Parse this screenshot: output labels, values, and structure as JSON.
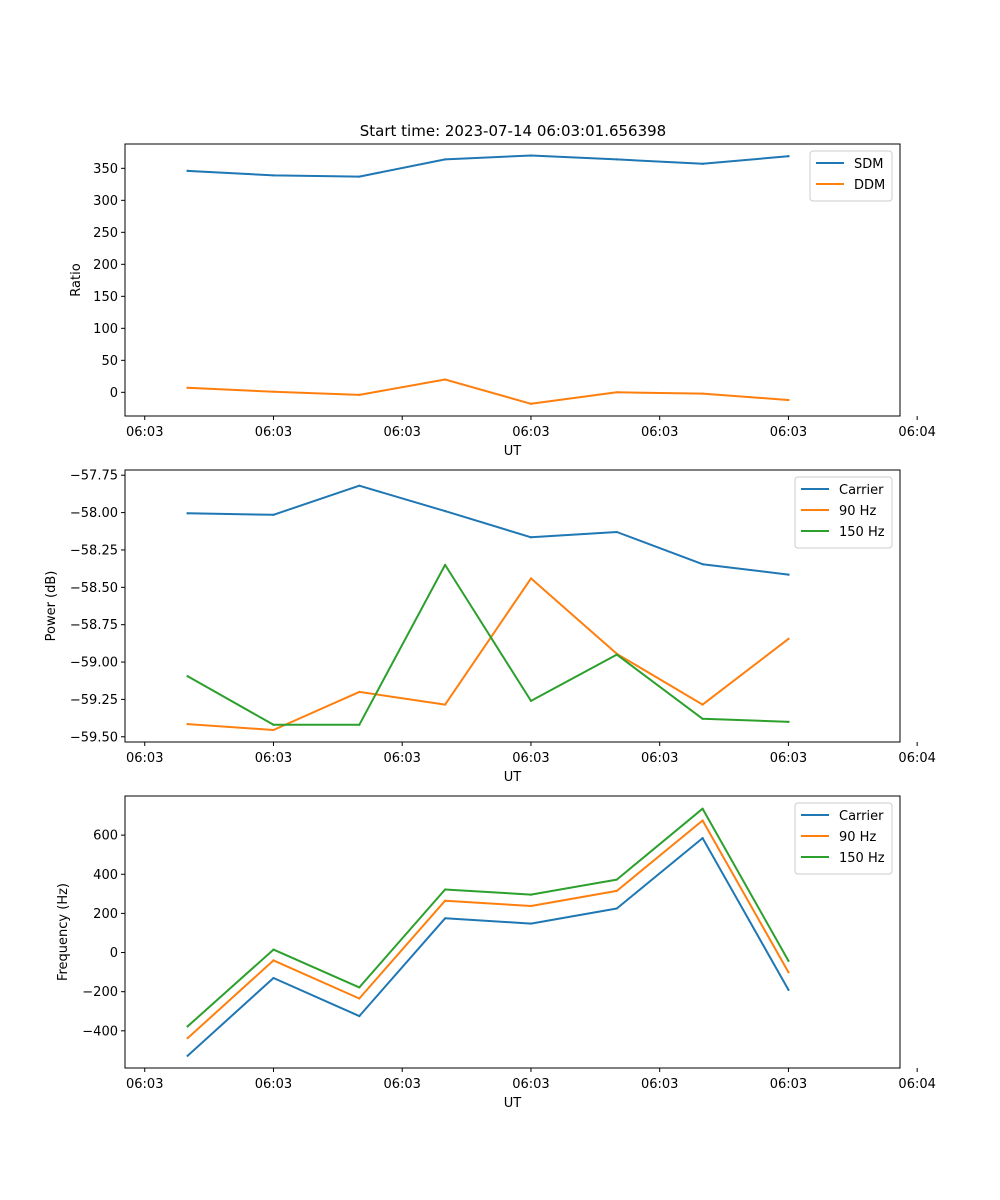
{
  "figure_title": "Start time: 2023-07-14 06:03:01.656398",
  "chart_data": [
    {
      "type": "line",
      "title": "Start time: 2023-07-14 06:03:01.656398",
      "xlabel": "UT",
      "ylabel": "Ratio",
      "x": [
        1,
        2,
        3,
        4,
        5,
        6,
        7,
        8
      ],
      "xlim": [
        0.27,
        9.3
      ],
      "xticks": [
        0.5,
        2,
        3.5,
        5,
        6.5,
        8,
        9.5
      ],
      "xtick_labels": [
        "06:03",
        "06:03",
        "06:03",
        "06:03",
        "06:03",
        "06:03",
        "06:04"
      ],
      "ylim": [
        -37,
        388
      ],
      "yticks": [
        0,
        50,
        100,
        150,
        200,
        250,
        300,
        350
      ],
      "ytick_labels": [
        "0",
        "50",
        "100",
        "150",
        "200",
        "250",
        "300",
        "350"
      ],
      "legend_position": "top-right",
      "series": [
        {
          "name": "SDM",
          "color": "#1f77b4",
          "values": [
            346,
            339,
            337,
            364,
            370,
            364,
            357,
            369
          ]
        },
        {
          "name": "DDM",
          "color": "#ff7f0e",
          "values": [
            7,
            1,
            -4,
            20,
            -18,
            0,
            -2,
            -12
          ]
        }
      ]
    },
    {
      "type": "line",
      "title": "",
      "xlabel": "UT",
      "ylabel": "Power (dB)",
      "x": [
        1,
        2,
        3,
        4,
        5,
        6,
        7,
        8
      ],
      "xlim": [
        0.27,
        9.3
      ],
      "xticks": [
        0.5,
        2,
        3.5,
        5,
        6.5,
        8,
        9.5
      ],
      "xtick_labels": [
        "06:03",
        "06:03",
        "06:03",
        "06:03",
        "06:03",
        "06:03",
        "06:04"
      ],
      "ylim": [
        -59.535,
        -57.715
      ],
      "yticks": [
        -59.5,
        -59.25,
        -59.0,
        -58.75,
        -58.5,
        -58.25,
        -58.0,
        -57.75
      ],
      "ytick_labels": [
        "−59.50",
        "−59.25",
        "−59.00",
        "−58.75",
        "−58.50",
        "−58.25",
        "−58.00",
        "−57.75"
      ],
      "legend_position": "top-right",
      "series": [
        {
          "name": "Carrier",
          "color": "#1f77b4",
          "values": [
            -58.005,
            -58.015,
            -57.82,
            -57.99,
            -58.165,
            -58.13,
            -58.345,
            -58.415
          ]
        },
        {
          "name": "90 Hz",
          "color": "#ff7f0e",
          "values": [
            -59.415,
            -59.455,
            -59.2,
            -59.285,
            -58.44,
            -58.945,
            -59.285,
            -58.845
          ]
        },
        {
          "name": "150 Hz",
          "color": "#2ca02c",
          "values": [
            -59.095,
            -59.42,
            -59.42,
            -58.35,
            -59.26,
            -58.95,
            -59.38,
            -59.4
          ]
        }
      ]
    },
    {
      "type": "line",
      "title": "",
      "xlabel": "UT",
      "ylabel": "Frequency (Hz)",
      "x": [
        1,
        2,
        3,
        4,
        5,
        6,
        7,
        8
      ],
      "xlim": [
        0.27,
        9.3
      ],
      "xticks": [
        0.5,
        2,
        3.5,
        5,
        6.5,
        8,
        9.5
      ],
      "xtick_labels": [
        "06:03",
        "06:03",
        "06:03",
        "06:03",
        "06:03",
        "06:03",
        "06:04"
      ],
      "ylim": [
        -590,
        800
      ],
      "yticks": [
        -400,
        -200,
        0,
        200,
        400,
        600
      ],
      "ytick_labels": [
        "−400",
        "−200",
        "0",
        "200",
        "400",
        "600"
      ],
      "legend_position": "top-right",
      "series": [
        {
          "name": "Carrier",
          "color": "#1f77b4",
          "values": [
            -527,
            -130,
            -325,
            175,
            148,
            225,
            585,
            -190
          ]
        },
        {
          "name": "90 Hz",
          "color": "#ff7f0e",
          "values": [
            -437,
            -40,
            -235,
            265,
            238,
            315,
            675,
            -100
          ]
        },
        {
          "name": "150 Hz",
          "color": "#2ca02c",
          "values": [
            -377,
            15,
            -178,
            322,
            296,
            373,
            735,
            -42
          ]
        }
      ]
    }
  ]
}
